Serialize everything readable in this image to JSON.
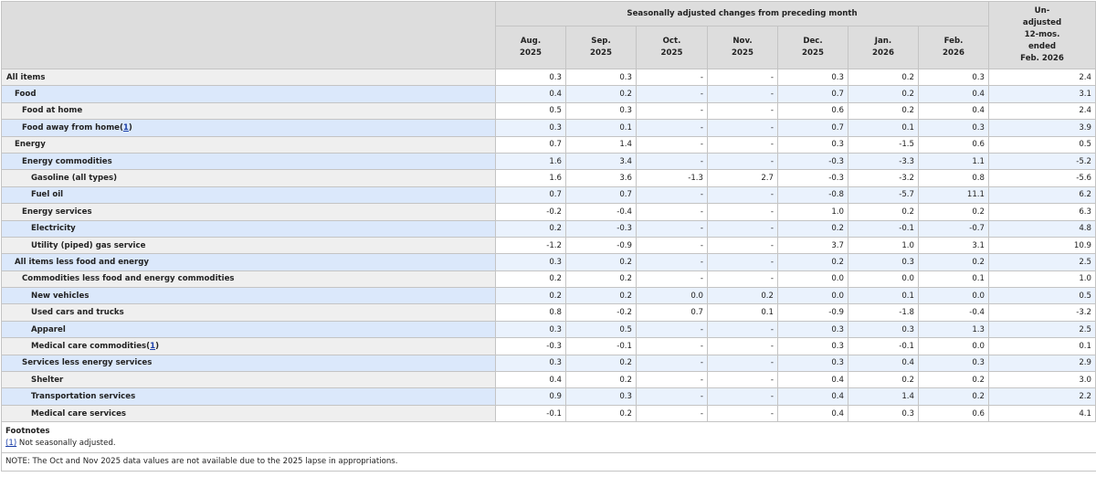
{
  "header": {
    "group_label": "Seasonally adjusted changes from preceding month",
    "unadjusted_label": [
      "Un-",
      "adjusted",
      "12-mos.",
      "ended",
      "Feb. 2026"
    ],
    "months": [
      [
        "Aug.",
        "2025"
      ],
      [
        "Sep.",
        "2025"
      ],
      [
        "Oct.",
        "2025"
      ],
      [
        "Nov.",
        "2025"
      ],
      [
        "Dec.",
        "2025"
      ],
      [
        "Jan.",
        "2026"
      ],
      [
        "Feb.",
        "2026"
      ]
    ]
  },
  "rows": [
    {
      "label": "All items",
      "level": 0,
      "values": [
        "0.3",
        "0.3",
        "-",
        "-",
        "0.3",
        "0.2",
        "0.3",
        "2.4"
      ]
    },
    {
      "label": "Food",
      "level": 1,
      "values": [
        "0.4",
        "0.2",
        "-",
        "-",
        "0.7",
        "0.2",
        "0.4",
        "3.1"
      ]
    },
    {
      "label": "Food at home",
      "level": 2,
      "values": [
        "0.5",
        "0.3",
        "-",
        "-",
        "0.6",
        "0.2",
        "0.4",
        "2.4"
      ]
    },
    {
      "label": "Food away from home",
      "footnote": "1",
      "level": 2,
      "values": [
        "0.3",
        "0.1",
        "-",
        "-",
        "0.7",
        "0.1",
        "0.3",
        "3.9"
      ]
    },
    {
      "label": "Energy",
      "level": 1,
      "values": [
        "0.7",
        "1.4",
        "-",
        "-",
        "0.3",
        "-1.5",
        "0.6",
        "0.5"
      ]
    },
    {
      "label": "Energy commodities",
      "level": 2,
      "values": [
        "1.6",
        "3.4",
        "-",
        "-",
        "-0.3",
        "-3.3",
        "1.1",
        "-5.2"
      ]
    },
    {
      "label": "Gasoline (all types)",
      "level": 3,
      "values": [
        "1.6",
        "3.6",
        "-1.3",
        "2.7",
        "-0.3",
        "-3.2",
        "0.8",
        "-5.6"
      ]
    },
    {
      "label": "Fuel oil",
      "level": 3,
      "values": [
        "0.7",
        "0.7",
        "-",
        "-",
        "-0.8",
        "-5.7",
        "11.1",
        "6.2"
      ]
    },
    {
      "label": "Energy services",
      "level": 2,
      "values": [
        "-0.2",
        "-0.4",
        "-",
        "-",
        "1.0",
        "0.2",
        "0.2",
        "6.3"
      ]
    },
    {
      "label": "Electricity",
      "level": 3,
      "values": [
        "0.2",
        "-0.3",
        "-",
        "-",
        "0.2",
        "-0.1",
        "-0.7",
        "4.8"
      ]
    },
    {
      "label": "Utility (piped) gas service",
      "level": 3,
      "values": [
        "-1.2",
        "-0.9",
        "-",
        "-",
        "3.7",
        "1.0",
        "3.1",
        "10.9"
      ]
    },
    {
      "label": "All items less food and energy",
      "level": 1,
      "values": [
        "0.3",
        "0.2",
        "-",
        "-",
        "0.2",
        "0.3",
        "0.2",
        "2.5"
      ]
    },
    {
      "label": "Commodities less food and energy commodities",
      "level": 2,
      "values": [
        "0.2",
        "0.2",
        "-",
        "-",
        "0.0",
        "0.0",
        "0.1",
        "1.0"
      ]
    },
    {
      "label": "New vehicles",
      "level": 3,
      "values": [
        "0.2",
        "0.2",
        "0.0",
        "0.2",
        "0.0",
        "0.1",
        "0.0",
        "0.5"
      ]
    },
    {
      "label": "Used cars and trucks",
      "level": 3,
      "values": [
        "0.8",
        "-0.2",
        "0.7",
        "0.1",
        "-0.9",
        "-1.8",
        "-0.4",
        "-3.2"
      ]
    },
    {
      "label": "Apparel",
      "level": 3,
      "values": [
        "0.3",
        "0.5",
        "-",
        "-",
        "0.3",
        "0.3",
        "1.3",
        "2.5"
      ]
    },
    {
      "label": "Medical care commodities",
      "footnote": "1",
      "level": 3,
      "values": [
        "-0.3",
        "-0.1",
        "-",
        "-",
        "0.3",
        "-0.1",
        "0.0",
        "0.1"
      ]
    },
    {
      "label": "Services less energy services",
      "level": 2,
      "values": [
        "0.3",
        "0.2",
        "-",
        "-",
        "0.3",
        "0.4",
        "0.3",
        "2.9"
      ]
    },
    {
      "label": "Shelter",
      "level": 3,
      "values": [
        "0.4",
        "0.2",
        "-",
        "-",
        "0.4",
        "0.2",
        "0.2",
        "3.0"
      ]
    },
    {
      "label": "Transportation services",
      "level": 3,
      "values": [
        "0.9",
        "0.3",
        "-",
        "-",
        "0.4",
        "1.4",
        "0.2",
        "2.2"
      ]
    },
    {
      "label": "Medical care services",
      "level": 3,
      "values": [
        "-0.1",
        "0.2",
        "-",
        "-",
        "0.4",
        "0.3",
        "0.6",
        "4.1"
      ]
    }
  ],
  "footnotes": {
    "title": "Footnotes",
    "items": [
      {
        "marker": "(1)",
        "text": " Not seasonally adjusted."
      }
    ]
  },
  "note": "NOTE: The Oct and Nov 2025 data values are not available due to the 2025 lapse in appropriations."
}
